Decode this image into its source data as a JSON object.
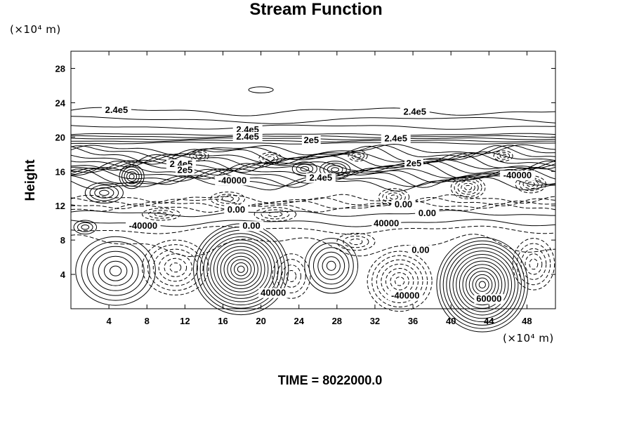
{
  "chart_data": {
    "type": "contour",
    "title": "Stream Function",
    "ylabel": "Height",
    "xunit_label": "(×10⁴ m)",
    "yunit_label": "(×10⁴ m)",
    "footer": "TIME = 8022000.0",
    "xlim": [
      0,
      51
    ],
    "ylim": [
      0,
      30
    ],
    "x_ticks": [
      4,
      8,
      12,
      16,
      20,
      24,
      28,
      32,
      36,
      40,
      44,
      48
    ],
    "y_ticks": [
      4,
      8,
      12,
      16,
      20,
      24,
      28
    ],
    "negative_contours": "dashed",
    "contour_labels": [
      {
        "text": "2.4e5",
        "x": 4.8,
        "y": 22.8
      },
      {
        "text": "2.4e5",
        "x": 36.2,
        "y": 22.6
      },
      {
        "text": "2.4e5",
        "x": 18.6,
        "y": 20.5
      },
      {
        "text": "2.4e5",
        "x": 18.6,
        "y": 19.7
      },
      {
        "text": "2.4e5",
        "x": 34.2,
        "y": 19.5
      },
      {
        "text": "2e5",
        "x": 25.3,
        "y": 19.3
      },
      {
        "text": "2.4e5",
        "x": 11.6,
        "y": 16.5
      },
      {
        "text": "2e5",
        "x": 12.0,
        "y": 15.8
      },
      {
        "text": "2e5",
        "x": 36.1,
        "y": 16.6
      },
      {
        "text": "2.4e5",
        "x": 26.3,
        "y": 14.9
      },
      {
        "text": "-40000",
        "x": 17.0,
        "y": 14.6
      },
      {
        "text": "-40000",
        "x": 47.0,
        "y": 15.2
      },
      {
        "text": "0.00",
        "x": 17.4,
        "y": 11.2
      },
      {
        "text": "0.00",
        "x": 35.0,
        "y": 11.8
      },
      {
        "text": "0.00",
        "x": 37.5,
        "y": 10.8
      },
      {
        "text": "-40000",
        "x": 7.6,
        "y": 9.3
      },
      {
        "text": "0.00",
        "x": 19.0,
        "y": 9.3
      },
      {
        "text": "40000",
        "x": 33.2,
        "y": 9.6
      },
      {
        "text": "0.00",
        "x": 36.8,
        "y": 6.5
      },
      {
        "text": "40000",
        "x": 21.3,
        "y": 1.5
      },
      {
        "text": "-40000",
        "x": 35.2,
        "y": 1.2
      },
      {
        "text": "60000",
        "x": 44.0,
        "y": 0.8
      }
    ]
  }
}
